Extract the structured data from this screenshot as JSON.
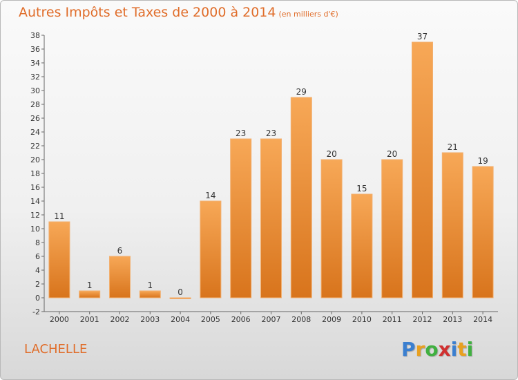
{
  "page": {
    "title": "Autres Impôts et Taxes de 2000 à 2014",
    "subtitle": "(en milliers d'€)",
    "location": "LACHELLE",
    "logo": "Proxiti",
    "logo_colors": [
      "#3a7fd0",
      "#e8a020",
      "#40b040",
      "#d03030",
      "#3a7fd0",
      "#e8a020",
      "#40b040"
    ]
  },
  "chart_data": {
    "type": "bar",
    "title": "Autres Impôts et Taxes de 2000 à 2014",
    "subtitle": "(en milliers d'€)",
    "categories": [
      "2000",
      "2001",
      "2002",
      "2003",
      "2004",
      "2005",
      "2006",
      "2007",
      "2008",
      "2009",
      "2010",
      "2011",
      "2012",
      "2013",
      "2014"
    ],
    "values": [
      11,
      1,
      6,
      1,
      0,
      14,
      23,
      23,
      29,
      20,
      15,
      20,
      37,
      21,
      19
    ],
    "ylim": [
      -2,
      38
    ],
    "yticks": [
      -2,
      0,
      2,
      4,
      6,
      8,
      10,
      12,
      14,
      16,
      18,
      20,
      22,
      24,
      26,
      28,
      30,
      32,
      34,
      36,
      38
    ],
    "grid": false,
    "bar_color_top": "#f7a857",
    "bar_color_bottom": "#d8741c",
    "axis_color": "#666666",
    "label_color": "#333333"
  }
}
